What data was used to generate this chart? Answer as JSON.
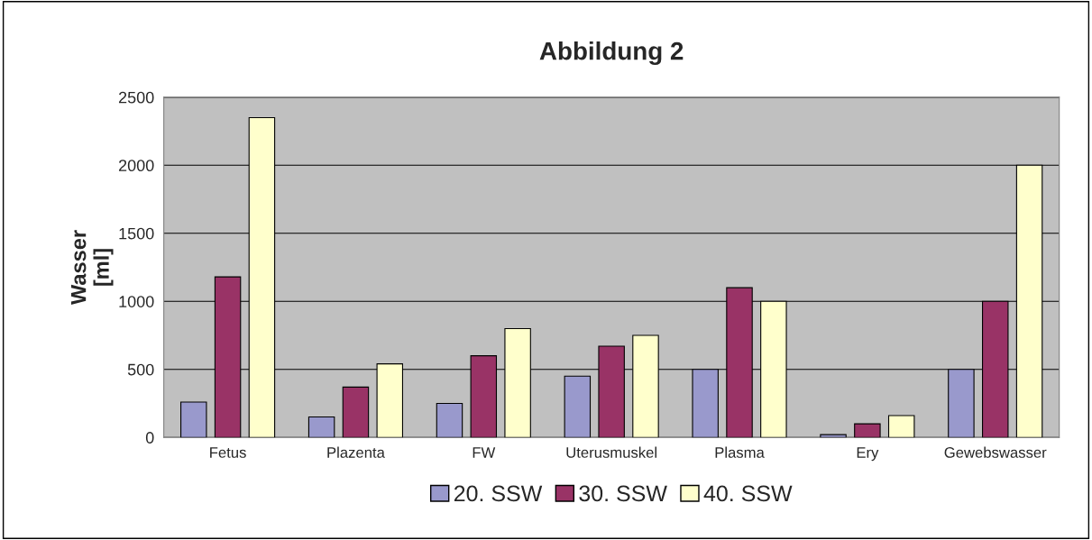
{
  "chart_data": {
    "type": "bar",
    "title": "Abbildung 2",
    "ylabel": "Wasser\n[ml]",
    "categories": [
      "Fetus",
      "Plazenta",
      "FW",
      "Uterusmuskel",
      "Plasma",
      "Ery",
      "Gewebswasser"
    ],
    "series": [
      {
        "name": "20. SSW",
        "color": "#9999cc",
        "values": [
          260,
          150,
          250,
          450,
          500,
          20,
          500
        ]
      },
      {
        "name": "30. SSW",
        "color": "#993366",
        "values": [
          1180,
          370,
          600,
          670,
          1100,
          100,
          1000
        ]
      },
      {
        "name": "40. SSW",
        "color": "#ffffcc",
        "values": [
          2350,
          540,
          800,
          750,
          1000,
          160,
          2000
        ]
      }
    ],
    "ylim": [
      0,
      2500
    ],
    "yticks": [
      0,
      500,
      1000,
      1500,
      2000,
      2500
    ],
    "grid": "y",
    "legend": "bottom"
  }
}
